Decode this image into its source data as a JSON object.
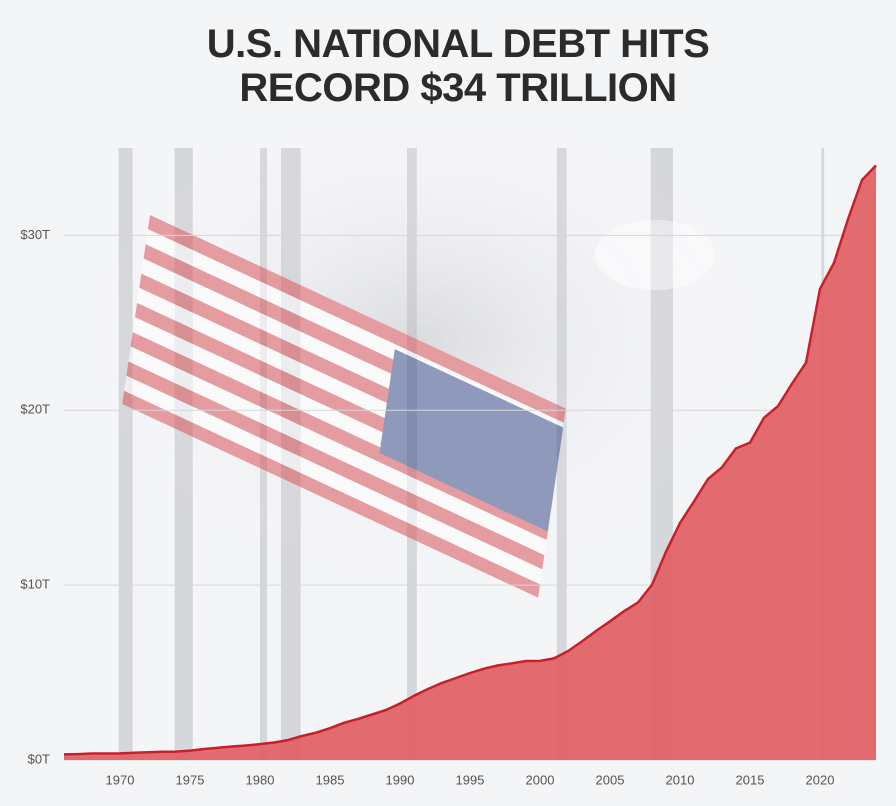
{
  "chart_data": {
    "type": "area",
    "title": "U.S. NATIONAL DEBT HITS",
    "subtitle": "RECORD $34 TRILLION",
    "x": [
      1966,
      1967,
      1968,
      1969,
      1970,
      1971,
      1972,
      1973,
      1974,
      1975,
      1976,
      1977,
      1978,
      1979,
      1980,
      1981,
      1982,
      1983,
      1984,
      1985,
      1986,
      1987,
      1988,
      1989,
      1990,
      1991,
      1992,
      1993,
      1994,
      1995,
      1996,
      1997,
      1998,
      1999,
      2000,
      2001,
      2002,
      2003,
      2004,
      2005,
      2006,
      2007,
      2008,
      2009,
      2010,
      2011,
      2012,
      2013,
      2014,
      2015,
      2016,
      2017,
      2018,
      2019,
      2020,
      2021,
      2022,
      2023,
      2024
    ],
    "values": [
      0.32,
      0.34,
      0.37,
      0.37,
      0.38,
      0.41,
      0.44,
      0.47,
      0.48,
      0.54,
      0.63,
      0.7,
      0.77,
      0.83,
      0.91,
      1.0,
      1.14,
      1.37,
      1.56,
      1.82,
      2.13,
      2.35,
      2.6,
      2.86,
      3.23,
      3.67,
      4.06,
      4.41,
      4.69,
      4.97,
      5.22,
      5.41,
      5.53,
      5.66,
      5.67,
      5.81,
      6.23,
      6.78,
      7.38,
      7.93,
      8.51,
      9.01,
      10.02,
      11.91,
      13.56,
      14.79,
      16.07,
      16.74,
      17.82,
      18.15,
      19.57,
      20.24,
      21.52,
      22.72,
      26.95,
      28.43,
      30.93,
      33.17,
      34.0
    ],
    "color": "#e06368",
    "line_color": "#c8202b",
    "recessions": [
      [
        1969.9,
        1970.9
      ],
      [
        1973.9,
        1975.2
      ],
      [
        1980.0,
        1980.5
      ],
      [
        1981.5,
        1982.9
      ],
      [
        1990.5,
        1991.2
      ],
      [
        2001.2,
        2001.9
      ],
      [
        2007.9,
        2009.5
      ],
      [
        2020.1,
        2020.3
      ]
    ],
    "xlim": [
      1966,
      2024
    ],
    "ylim": [
      0,
      35
    ],
    "xticks": [
      1970,
      1975,
      1980,
      1985,
      1990,
      1995,
      2000,
      2005,
      2010,
      2015,
      2020
    ],
    "yticks": [
      {
        "value": 0,
        "label": "$0T"
      },
      {
        "value": 10,
        "label": "$10T"
      },
      {
        "value": 20,
        "label": "$20T"
      },
      {
        "value": 30,
        "label": "$30T"
      }
    ],
    "grid": true
  }
}
